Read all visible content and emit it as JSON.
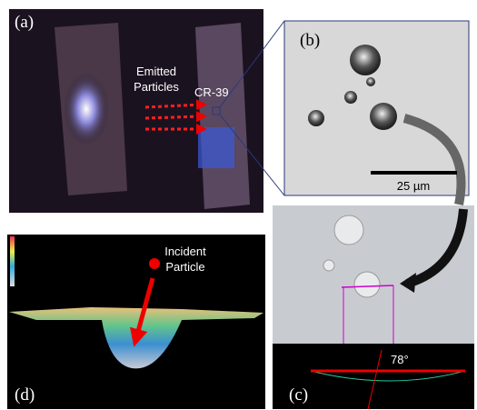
{
  "panels": {
    "a": {
      "label": "(a)",
      "emitted": [
        "Emitted",
        "Particles"
      ],
      "detector": "CR-39"
    },
    "b": {
      "label": "(b)",
      "scale_bar": "25 µm"
    },
    "c": {
      "label": "(c)",
      "angle": "78°"
    },
    "d": {
      "label": "(d)",
      "incident": [
        "Incident",
        "Particle"
      ]
    }
  }
}
